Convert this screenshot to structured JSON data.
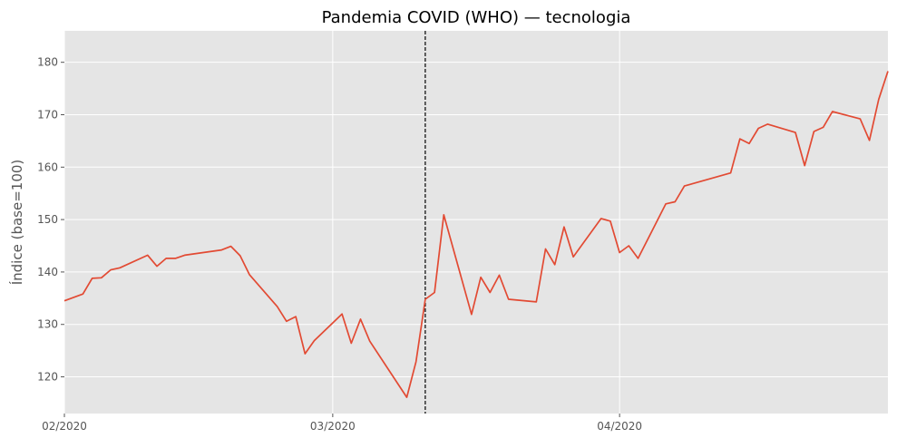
{
  "chart_data": {
    "type": "line",
    "title": "Pandemia COVID (WHO) — tecnologia",
    "xlabel": "",
    "ylabel": "Índice (base=100)",
    "xlim": [
      "2020-02-01",
      "2020-04-30"
    ],
    "ylim": [
      113,
      186
    ],
    "x_ticks": [
      {
        "date": "2020-02-01",
        "label": "02/2020"
      },
      {
        "date": "2020-03-01",
        "label": "03/2020"
      },
      {
        "date": "2020-04-01",
        "label": "04/2020"
      }
    ],
    "y_ticks": [
      120,
      130,
      140,
      150,
      160,
      170,
      180
    ],
    "event_line": {
      "date": "2020-03-11",
      "style": "dashed",
      "color": "#000000"
    },
    "grid": true,
    "colors": {
      "line": "#E24A33",
      "plot_bg": "#E5E5E5",
      "grid": "#FFFFFF"
    },
    "series": [
      {
        "x": [
          "2020-02-01",
          "2020-02-03",
          "2020-02-04",
          "2020-02-05",
          "2020-02-06",
          "2020-02-07",
          "2020-02-10",
          "2020-02-11",
          "2020-02-12",
          "2020-02-13",
          "2020-02-14",
          "2020-02-18",
          "2020-02-19",
          "2020-02-20",
          "2020-02-21",
          "2020-02-24",
          "2020-02-25",
          "2020-02-26",
          "2020-02-27",
          "2020-02-28",
          "2020-03-02",
          "2020-03-03",
          "2020-03-04",
          "2020-03-05",
          "2020-03-09",
          "2020-03-10",
          "2020-03-11",
          "2020-03-12",
          "2020-03-13",
          "2020-03-16",
          "2020-03-17",
          "2020-03-18",
          "2020-03-19",
          "2020-03-20",
          "2020-03-23",
          "2020-03-24",
          "2020-03-25",
          "2020-03-26",
          "2020-03-27",
          "2020-03-30",
          "2020-03-31",
          "2020-04-01",
          "2020-04-02",
          "2020-04-03",
          "2020-04-06",
          "2020-04-07",
          "2020-04-08",
          "2020-04-13",
          "2020-04-14",
          "2020-04-15",
          "2020-04-16",
          "2020-04-17",
          "2020-04-20",
          "2020-04-21",
          "2020-04-22",
          "2020-04-23",
          "2020-04-24",
          "2020-04-27",
          "2020-04-28",
          "2020-04-29",
          "2020-04-30"
        ],
        "values": [
          134.5,
          135.8,
          138.8,
          138.9,
          140.4,
          140.8,
          143.2,
          141.1,
          142.6,
          142.6,
          143.2,
          144.2,
          144.9,
          143.1,
          139.5,
          133.4,
          130.6,
          131.5,
          124.4,
          126.9,
          132.0,
          126.4,
          131.0,
          126.8,
          116.1,
          122.9,
          134.8,
          136.1,
          150.9,
          131.9,
          139.0,
          136.1,
          139.4,
          134.8,
          134.3,
          144.4,
          141.4,
          148.6,
          142.9,
          150.2,
          149.7,
          143.7,
          145.0,
          142.6,
          153.0,
          153.4,
          156.4,
          158.9,
          165.4,
          164.5,
          167.4,
          168.2,
          166.6,
          160.3,
          166.8,
          167.6,
          170.6,
          169.2,
          165.1,
          172.9,
          178.3
        ]
      }
    ]
  }
}
